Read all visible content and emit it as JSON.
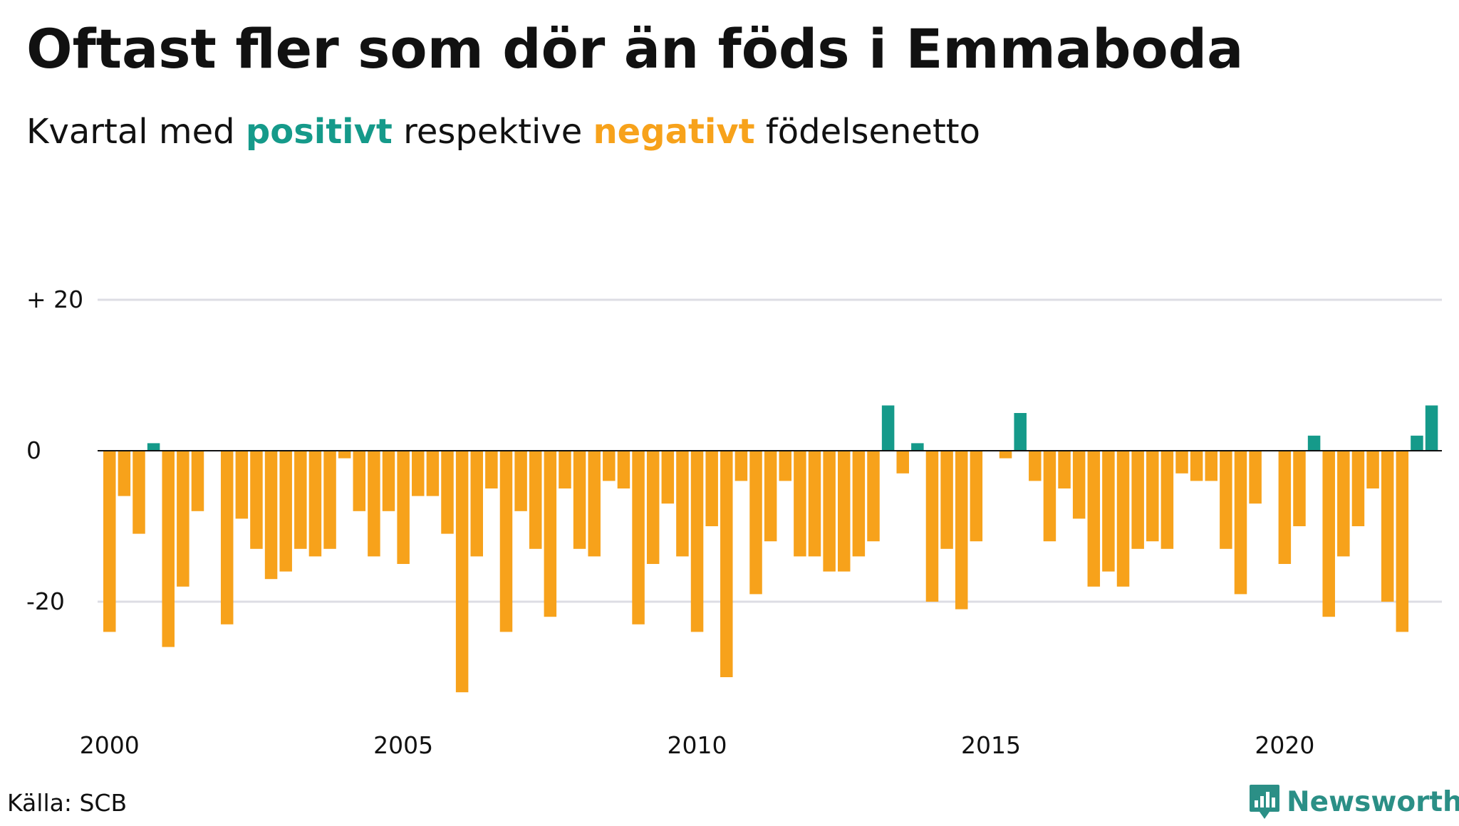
{
  "title": "Oftast fler som dör än föds i Emmaboda",
  "subtitle": {
    "prefix": "Kvartal med ",
    "positive": "positivt",
    "middle": " respektive ",
    "negative": "negativt",
    "suffix": " födelsenetto"
  },
  "source": "Källa: SCB",
  "logo": {
    "text": "Newsworthy",
    "icon": "chart-logo-icon"
  },
  "colors": {
    "positive": "#159a8a",
    "negative": "#f7a21b",
    "grid": "#dddde4",
    "zero_line": "#111111"
  },
  "chart_data": {
    "type": "bar",
    "x_start": "2000 Q1",
    "x_ticks": [
      {
        "value": 2000,
        "label": "2000"
      },
      {
        "value": 2005,
        "label": "2005"
      },
      {
        "value": 2010,
        "label": "2010"
      },
      {
        "value": 2015,
        "label": "2015"
      },
      {
        "value": 2020,
        "label": "2020"
      }
    ],
    "y_ticks": [
      {
        "value": 20,
        "label": "+ 20"
      },
      {
        "value": 0,
        "label": "0"
      },
      {
        "value": -20,
        "label": "-20"
      }
    ],
    "ylim": [
      -34,
      20
    ],
    "grid": true,
    "values": [
      -24,
      -6,
      -11,
      1,
      -26,
      -18,
      -8,
      0,
      -23,
      -9,
      -13,
      -17,
      -16,
      -13,
      -14,
      -13,
      -1,
      -8,
      -14,
      -8,
      -15,
      -6,
      -6,
      -11,
      -32,
      -14,
      -5,
      -24,
      -8,
      -13,
      -22,
      -5,
      -13,
      -14,
      -4,
      -5,
      -23,
      -15,
      -7,
      -14,
      -24,
      -10,
      -30,
      -4,
      -19,
      -12,
      -4,
      -14,
      -14,
      -16,
      -16,
      -14,
      -12,
      6,
      -3,
      1,
      -20,
      -13,
      -21,
      -12,
      0,
      -1,
      5,
      -4,
      -12,
      -5,
      -9,
      -18,
      -16,
      -18,
      -13,
      -12,
      -13,
      -3,
      -4,
      -4,
      -13,
      -19,
      -7,
      0,
      -15,
      -10,
      2,
      -22,
      -14,
      -10,
      -5,
      -20,
      -24,
      2,
      6
    ]
  }
}
